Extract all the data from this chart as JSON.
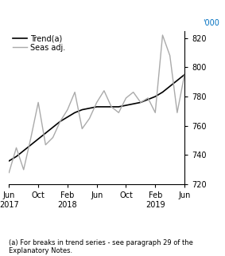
{
  "trend_x": [
    0,
    1,
    2,
    3,
    4,
    5,
    6,
    7,
    8,
    9,
    10,
    11,
    12,
    13,
    14,
    15,
    16,
    17,
    18,
    19,
    20,
    21,
    22,
    23,
    24
  ],
  "trend_y": [
    736,
    739,
    743,
    747,
    751,
    755,
    759,
    763,
    766,
    769,
    771,
    772,
    773,
    773,
    773,
    773,
    774,
    775,
    776,
    778,
    780,
    783,
    787,
    791,
    795
  ],
  "seas_x": [
    0,
    1,
    2,
    3,
    4,
    5,
    6,
    7,
    8,
    9,
    10,
    11,
    12,
    13,
    14,
    15,
    16,
    17,
    18,
    19,
    20,
    21,
    22,
    23,
    24
  ],
  "seas_y": [
    728,
    745,
    730,
    752,
    776,
    747,
    752,
    763,
    771,
    783,
    758,
    765,
    776,
    784,
    773,
    769,
    779,
    783,
    776,
    779,
    769,
    822,
    808,
    769,
    795
  ],
  "x_tick_positions": [
    0,
    4,
    8,
    12,
    16,
    20,
    24
  ],
  "x_tick_labels": [
    "Jun\n2017",
    "Oct",
    "Feb\n2018",
    "Jun",
    "Oct",
    "Feb\n2019",
    "Jun"
  ],
  "ylim": [
    720,
    825
  ],
  "yticks": [
    720,
    740,
    760,
    780,
    800,
    820
  ],
  "ylabel": "'000",
  "trend_color": "#000000",
  "seas_color": "#aaaaaa",
  "legend_trend": "Trend(a)",
  "legend_seas": "Seas adj.",
  "footnote": "(a) For breaks in trend series - see paragraph 29 of the\nExplanatory Notes."
}
